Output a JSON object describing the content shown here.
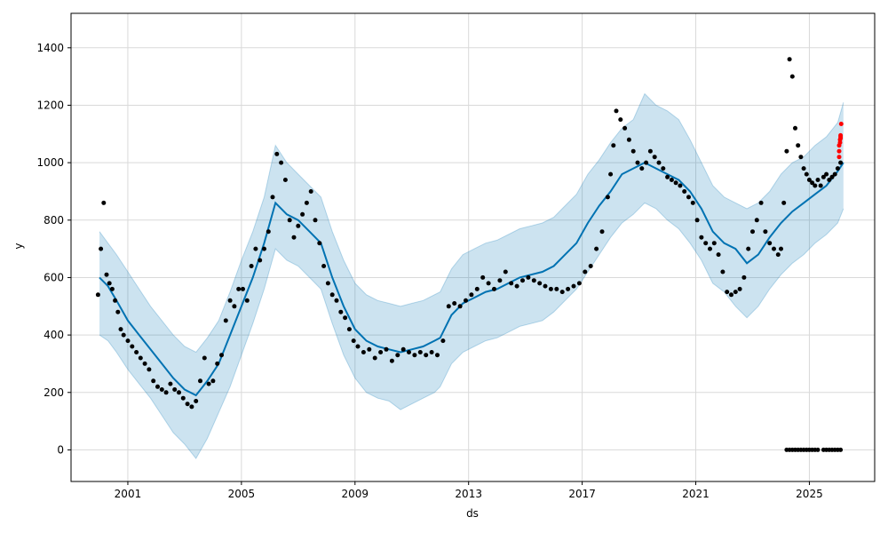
{
  "chart_data": {
    "type": "line",
    "xlabel": "ds",
    "ylabel": "y",
    "xlim": [
      1999.0,
      2027.3
    ],
    "ylim": [
      -110,
      1520
    ],
    "grid": true,
    "x_ticks": [
      {
        "value": 2001,
        "label": "2001"
      },
      {
        "value": 2005,
        "label": "2005"
      },
      {
        "value": 2009,
        "label": "2009"
      },
      {
        "value": 2013,
        "label": "2013"
      },
      {
        "value": 2017,
        "label": "2017"
      },
      {
        "value": 2021,
        "label": "2021"
      },
      {
        "value": 2025,
        "label": "2025"
      }
    ],
    "y_ticks": [
      {
        "value": 0,
        "label": "0"
      },
      {
        "value": 200,
        "label": "200"
      },
      {
        "value": 400,
        "label": "400"
      },
      {
        "value": 600,
        "label": "600"
      },
      {
        "value": 800,
        "label": "800"
      },
      {
        "value": 1000,
        "label": "1000"
      },
      {
        "value": 1200,
        "label": "1200"
      },
      {
        "value": 1400,
        "label": "1400"
      }
    ],
    "colors": {
      "forecast": "#0072B2",
      "interval": "#0072B2",
      "observed": "#000000",
      "highlighted": "#ff0000",
      "grid": "#d9d9d9"
    },
    "series": [
      {
        "kind": "forecast_line",
        "x": [
          2000.0,
          2000.3,
          2000.6,
          2001.0,
          2001.4,
          2001.8,
          2002.2,
          2002.6,
          2003.0,
          2003.4,
          2003.8,
          2004.2,
          2004.6,
          2005.0,
          2005.4,
          2005.8,
          2006.2,
          2006.6,
          2007.0,
          2007.4,
          2007.8,
          2008.2,
          2008.6,
          2009.0,
          2009.4,
          2009.8,
          2010.2,
          2010.6,
          2011.0,
          2011.4,
          2011.8,
          2012.0,
          2012.4,
          2012.8,
          2013.2,
          2013.6,
          2014.0,
          2014.4,
          2014.8,
          2015.2,
          2015.6,
          2016.0,
          2016.4,
          2016.8,
          2017.2,
          2017.6,
          2018.0,
          2018.4,
          2018.8,
          2019.2,
          2019.6,
          2020.0,
          2020.4,
          2020.8,
          2021.2,
          2021.6,
          2022.0,
          2022.4,
          2022.8,
          2023.2,
          2023.6,
          2024.0,
          2024.4,
          2024.8,
          2025.2,
          2025.6,
          2026.0,
          2026.2
        ],
        "y": [
          600,
          570,
          520,
          450,
          400,
          350,
          300,
          250,
          210,
          190,
          240,
          300,
          400,
          500,
          600,
          720,
          860,
          820,
          800,
          760,
          720,
          600,
          500,
          420,
          380,
          360,
          350,
          340,
          350,
          360,
          380,
          390,
          470,
          510,
          530,
          550,
          560,
          580,
          600,
          610,
          620,
          640,
          680,
          720,
          790,
          850,
          900,
          960,
          980,
          1000,
          980,
          960,
          940,
          900,
          840,
          760,
          720,
          700,
          650,
          680,
          740,
          790,
          830,
          860,
          890,
          920,
          970,
          1000
        ]
      },
      {
        "kind": "interval_upper",
        "x": [
          2000.0,
          2000.3,
          2000.6,
          2001.0,
          2001.4,
          2001.8,
          2002.2,
          2002.6,
          2003.0,
          2003.4,
          2003.8,
          2004.2,
          2004.6,
          2005.0,
          2005.4,
          2005.8,
          2006.2,
          2006.6,
          2007.0,
          2007.4,
          2007.8,
          2008.2,
          2008.6,
          2009.0,
          2009.4,
          2009.8,
          2010.2,
          2010.6,
          2011.0,
          2011.4,
          2011.8,
          2012.0,
          2012.4,
          2012.8,
          2013.2,
          2013.6,
          2014.0,
          2014.4,
          2014.8,
          2015.2,
          2015.6,
          2016.0,
          2016.4,
          2016.8,
          2017.2,
          2017.6,
          2018.0,
          2018.4,
          2018.8,
          2019.2,
          2019.6,
          2020.0,
          2020.4,
          2020.8,
          2021.2,
          2021.6,
          2022.0,
          2022.4,
          2022.8,
          2023.2,
          2023.6,
          2024.0,
          2024.4,
          2024.8,
          2025.2,
          2025.6,
          2026.0,
          2026.2
        ],
        "y": [
          760,
          720,
          680,
          620,
          560,
          500,
          450,
          400,
          360,
          340,
          390,
          450,
          550,
          660,
          760,
          880,
          1060,
          1000,
          960,
          920,
          880,
          760,
          660,
          580,
          540,
          520,
          510,
          500,
          510,
          520,
          540,
          550,
          630,
          680,
          700,
          720,
          730,
          750,
          770,
          780,
          790,
          810,
          850,
          890,
          960,
          1010,
          1070,
          1120,
          1150,
          1240,
          1200,
          1180,
          1150,
          1080,
          1000,
          920,
          880,
          860,
          840,
          860,
          900,
          960,
          1000,
          1020,
          1060,
          1090,
          1140,
          1210
        ]
      },
      {
        "kind": "interval_lower",
        "x": [
          2000.0,
          2000.3,
          2000.6,
          2001.0,
          2001.4,
          2001.8,
          2002.2,
          2002.6,
          2003.0,
          2003.4,
          2003.8,
          2004.2,
          2004.6,
          2005.0,
          2005.4,
          2005.8,
          2006.2,
          2006.6,
          2007.0,
          2007.4,
          2007.8,
          2008.2,
          2008.6,
          2009.0,
          2009.4,
          2009.8,
          2010.2,
          2010.6,
          2011.0,
          2011.4,
          2011.8,
          2012.0,
          2012.4,
          2012.8,
          2013.2,
          2013.6,
          2014.0,
          2014.4,
          2014.8,
          2015.2,
          2015.6,
          2016.0,
          2016.4,
          2016.8,
          2017.2,
          2017.6,
          2018.0,
          2018.4,
          2018.8,
          2019.2,
          2019.6,
          2020.0,
          2020.4,
          2020.8,
          2021.2,
          2021.6,
          2022.0,
          2022.4,
          2022.8,
          2023.2,
          2023.6,
          2024.0,
          2024.4,
          2024.8,
          2025.2,
          2025.6,
          2026.0,
          2026.2
        ],
        "y": [
          400,
          380,
          340,
          280,
          230,
          180,
          120,
          60,
          20,
          -30,
          40,
          130,
          220,
          330,
          440,
          560,
          700,
          660,
          640,
          600,
          560,
          440,
          330,
          250,
          200,
          180,
          170,
          140,
          160,
          180,
          200,
          220,
          300,
          340,
          360,
          380,
          390,
          410,
          430,
          440,
          450,
          480,
          520,
          560,
          620,
          680,
          740,
          790,
          820,
          860,
          840,
          800,
          770,
          720,
          660,
          580,
          550,
          500,
          460,
          500,
          560,
          610,
          650,
          680,
          720,
          750,
          790,
          840
        ]
      },
      {
        "kind": "observed",
        "x": [
          1999.95,
          2000.05,
          2000.15,
          2000.25,
          2000.35,
          2000.45,
          2000.55,
          2000.65,
          2000.75,
          2000.85,
          2001.0,
          2001.15,
          2001.3,
          2001.45,
          2001.6,
          2001.75,
          2001.9,
          2002.05,
          2002.2,
          2002.35,
          2002.5,
          2002.65,
          2002.8,
          2002.95,
          2003.1,
          2003.25,
          2003.4,
          2003.55,
          2003.7,
          2003.85,
          2004.0,
          2004.15,
          2004.3,
          2004.45,
          2004.6,
          2004.75,
          2004.9,
          2005.05,
          2005.2,
          2005.35,
          2005.5,
          2005.65,
          2005.8,
          2005.95,
          2006.1,
          2006.25,
          2006.4,
          2006.55,
          2006.7,
          2006.85,
          2007.0,
          2007.15,
          2007.3,
          2007.45,
          2007.6,
          2007.75,
          2007.9,
          2008.05,
          2008.2,
          2008.35,
          2008.5,
          2008.65,
          2008.8,
          2008.95,
          2009.1,
          2009.3,
          2009.5,
          2009.7,
          2009.9,
          2010.1,
          2010.3,
          2010.5,
          2010.7,
          2010.9,
          2011.1,
          2011.3,
          2011.5,
          2011.7,
          2011.9,
          2012.1,
          2012.3,
          2012.5,
          2012.7,
          2012.9,
          2013.1,
          2013.3,
          2013.5,
          2013.7,
          2013.9,
          2014.1,
          2014.3,
          2014.5,
          2014.7,
          2014.9,
          2015.1,
          2015.3,
          2015.5,
          2015.7,
          2015.9,
          2016.1,
          2016.3,
          2016.5,
          2016.7,
          2016.9,
          2017.1,
          2017.3,
          2017.5,
          2017.7,
          2017.9,
          2018.0,
          2018.1,
          2018.2,
          2018.35,
          2018.5,
          2018.65,
          2018.8,
          2018.95,
          2019.1,
          2019.25,
          2019.4,
          2019.55,
          2019.7,
          2019.85,
          2020.0,
          2020.15,
          2020.3,
          2020.45,
          2020.6,
          2020.75,
          2020.9,
          2021.05,
          2021.2,
          2021.35,
          2021.5,
          2021.65,
          2021.8,
          2021.95,
          2022.1,
          2022.25,
          2022.4,
          2022.55,
          2022.7,
          2022.85,
          2023.0,
          2023.15,
          2023.3,
          2023.45,
          2023.6,
          2023.75,
          2023.9,
          2024.0,
          2024.1,
          2024.2,
          2024.3,
          2024.4,
          2024.5,
          2024.6,
          2024.7,
          2024.8,
          2024.9,
          2025.0,
          2025.1,
          2025.2,
          2025.3,
          2025.4,
          2025.5,
          2025.6,
          2025.7,
          2025.8,
          2025.9,
          2026.0,
          2026.1
        ],
        "y": [
          540,
          700,
          860,
          610,
          580,
          560,
          520,
          480,
          420,
          400,
          380,
          360,
          340,
          320,
          300,
          280,
          240,
          220,
          210,
          200,
          230,
          210,
          200,
          180,
          160,
          150,
          170,
          240,
          320,
          230,
          240,
          300,
          330,
          450,
          520,
          500,
          560,
          560,
          520,
          640,
          700,
          660,
          700,
          760,
          880,
          1030,
          1000,
          940,
          800,
          740,
          780,
          820,
          860,
          900,
          800,
          720,
          640,
          580,
          540,
          520,
          480,
          460,
          420,
          380,
          360,
          340,
          350,
          320,
          340,
          350,
          310,
          330,
          350,
          340,
          330,
          340,
          330,
          340,
          330,
          380,
          500,
          510,
          500,
          520,
          540,
          560,
          600,
          580,
          560,
          590,
          620,
          580,
          570,
          590,
          600,
          590,
          580,
          570,
          560,
          560,
          550,
          560,
          570,
          580,
          620,
          640,
          700,
          760,
          880,
          960,
          1060,
          1180,
          1150,
          1120,
          1080,
          1040,
          1000,
          980,
          1000,
          1040,
          1020,
          1000,
          980,
          950,
          940,
          930,
          920,
          900,
          880,
          860,
          800,
          740,
          720,
          700,
          720,
          680,
          620,
          550,
          540,
          550,
          560,
          600,
          700,
          760,
          800,
          860,
          760,
          720,
          700,
          680,
          700,
          860,
          1040,
          1360,
          1300,
          1120,
          1060,
          1020,
          980,
          960,
          940,
          930,
          920,
          940,
          920,
          950,
          960,
          940,
          950,
          960,
          980,
          1000
        ]
      },
      {
        "kind": "observed_zero",
        "x": [
          2024.2,
          2024.3,
          2024.4,
          2024.5,
          2024.6,
          2024.7,
          2024.8,
          2024.9,
          2025.0,
          2025.1,
          2025.2,
          2025.3,
          2025.5,
          2025.6,
          2025.7,
          2025.8,
          2025.9,
          2026.0,
          2026.1
        ],
        "y": [
          0,
          0,
          0,
          0,
          0,
          0,
          0,
          0,
          0,
          0,
          0,
          0,
          0,
          0,
          0,
          0,
          0,
          0,
          0
        ]
      },
      {
        "kind": "observed_highlighted",
        "x": [
          2026.05,
          2026.05,
          2026.05,
          2026.08,
          2026.08,
          2026.1,
          2026.1,
          2026.1,
          2026.12
        ],
        "y": [
          1020,
          1040,
          1060,
          1070,
          1080,
          1085,
          1090,
          1095,
          1135
        ]
      }
    ]
  }
}
